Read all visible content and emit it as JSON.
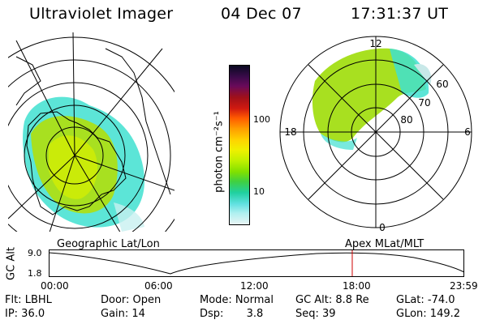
{
  "header": {
    "instrument": "Ultraviolet Imager",
    "date": "04 Dec 07",
    "time": "17:31:37 UT"
  },
  "colorbar": {
    "unit": "photon cm⁻²s⁻¹",
    "ticks": [
      "100",
      "10"
    ],
    "colors": [
      "#0a0a20",
      "#3a0a4a",
      "#6a0a5a",
      "#a0101a",
      "#d01a10",
      "#ff5a00",
      "#ffa000",
      "#ffd400",
      "#f0f000",
      "#c0f000",
      "#80e000",
      "#40d040",
      "#20d0a0",
      "#60e0e0",
      "#b0f0f0",
      "#e8f4f4"
    ]
  },
  "left_map": {
    "caption": "Geographic Lat/Lon"
  },
  "right_map": {
    "caption": "Apex MLat/MLT",
    "mlt_labels": [
      "12",
      "18",
      "6",
      "0"
    ],
    "lat_labels": [
      "60",
      "70",
      "80"
    ]
  },
  "timeline": {
    "axis_label": "GC Alt",
    "y_ticks": [
      "9.0",
      "1.8"
    ],
    "x_ticks": [
      "00:00",
      "06:00",
      "12:00",
      "18:00",
      "23:59"
    ],
    "marker_hour": 17.53
  },
  "footer": {
    "filter": "Flt: LBHL",
    "ip": "IP: 36.0",
    "door": "Door: Open",
    "gain": "Gain: 14",
    "mode": "Mode: Normal",
    "dsp_label": "Dsp:",
    "dsp_value": "3.8",
    "gc_alt": "GC Alt: 8.8 Re",
    "seq": "Seq: 39",
    "glat": "GLat: -74.0",
    "glon": "GLon: 149.2"
  },
  "accent": {
    "marker": "#d00000"
  }
}
